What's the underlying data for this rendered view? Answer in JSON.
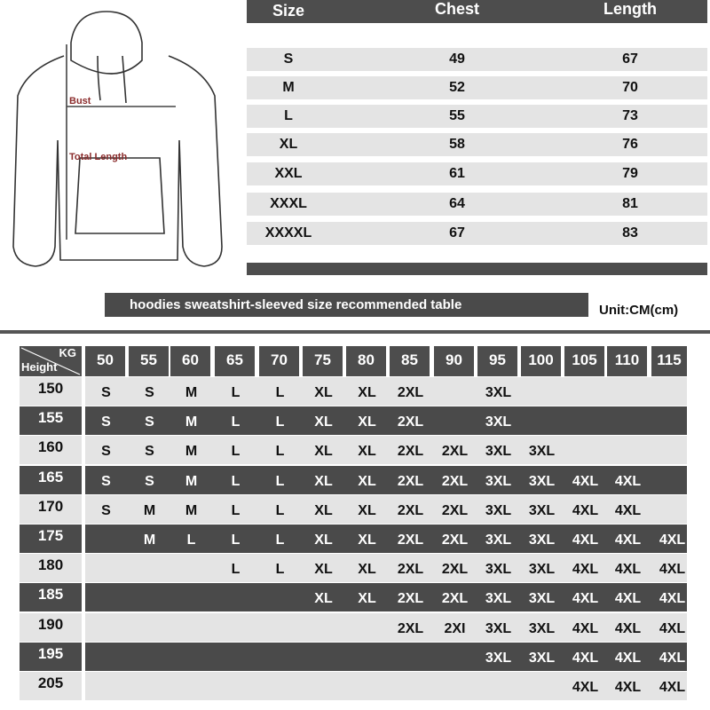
{
  "hoodie": {
    "bust_label": "Bust",
    "length_label": "Total Length",
    "label_color": "#8b2c2c"
  },
  "size_table": {
    "headers": [
      "Size",
      "Chest",
      "Length"
    ],
    "rows": [
      [
        "S",
        "49",
        "67"
      ],
      [
        "M",
        "52",
        "70"
      ],
      [
        "L",
        "55",
        "73"
      ],
      [
        "XL",
        "58",
        "76"
      ],
      [
        "XXL",
        "61",
        "79"
      ],
      [
        "XXXL",
        "64",
        "81"
      ],
      [
        "XXXXL",
        "67",
        "83"
      ]
    ]
  },
  "banner": "hoodies sweatshirt-sleeved size recommended table",
  "unit": "Unit:CM(cm)",
  "rec_table": {
    "corner_top": "KG",
    "corner_bottom": "Height",
    "weights": [
      "50",
      "55",
      "60",
      "65",
      "70",
      "75",
      "80",
      "85",
      "90",
      "95",
      "100",
      "105",
      "110",
      "115"
    ],
    "rows": [
      {
        "height": "150",
        "sizes": [
          "S",
          "S",
          "M",
          "L",
          "L",
          "XL",
          "XL",
          "2XL",
          "",
          "3XL",
          "",
          "",
          "",
          ""
        ]
      },
      {
        "height": "155",
        "sizes": [
          "S",
          "S",
          "M",
          "L",
          "L",
          "XL",
          "XL",
          "2XL",
          "",
          "3XL",
          "",
          "",
          "",
          ""
        ]
      },
      {
        "height": "160",
        "sizes": [
          "S",
          "S",
          "M",
          "L",
          "L",
          "XL",
          "XL",
          "2XL",
          "2XL",
          "3XL",
          "3XL",
          "",
          "",
          ""
        ]
      },
      {
        "height": "165",
        "sizes": [
          "S",
          "S",
          "M",
          "L",
          "L",
          "XL",
          "XL",
          "2XL",
          "2XL",
          "3XL",
          "3XL",
          "4XL",
          "4XL",
          ""
        ]
      },
      {
        "height": "170",
        "sizes": [
          "S",
          "M",
          "M",
          "L",
          "L",
          "XL",
          "XL",
          "2XL",
          "2XL",
          "3XL",
          "3XL",
          "4XL",
          "4XL",
          ""
        ]
      },
      {
        "height": "175",
        "sizes": [
          "",
          "M",
          "L",
          "L",
          "L",
          "XL",
          "XL",
          "2XL",
          "2XL",
          "3XL",
          "3XL",
          "4XL",
          "4XL",
          "4XL"
        ]
      },
      {
        "height": "180",
        "sizes": [
          "",
          "",
          "",
          "L",
          "L",
          "XL",
          "XL",
          "2XL",
          "2XL",
          "3XL",
          "3XL",
          "4XL",
          "4XL",
          "4XL"
        ]
      },
      {
        "height": "185",
        "sizes": [
          "",
          "",
          "",
          "",
          "",
          "XL",
          "XL",
          "2XL",
          "2XL",
          "3XL",
          "3XL",
          "4XL",
          "4XL",
          "4XL"
        ]
      },
      {
        "height": "190",
        "sizes": [
          "",
          "",
          "",
          "",
          "",
          "",
          "",
          "2XL",
          "2XI",
          "3XL",
          "3XL",
          "4XL",
          "4XL",
          "4XL"
        ]
      },
      {
        "height": "195",
        "sizes": [
          "",
          "",
          "",
          "",
          "",
          "",
          "",
          "",
          "",
          "3XL",
          "3XL",
          "4XL",
          "4XL",
          "4XL"
        ]
      },
      {
        "height": "205",
        "sizes": [
          "",
          "",
          "",
          "",
          "",
          "",
          "",
          "",
          "",
          "",
          "",
          "4XL",
          "4XL",
          "4XL"
        ]
      }
    ],
    "light_color": "#e4e4e4",
    "dark_color": "#4a4a4a"
  }
}
